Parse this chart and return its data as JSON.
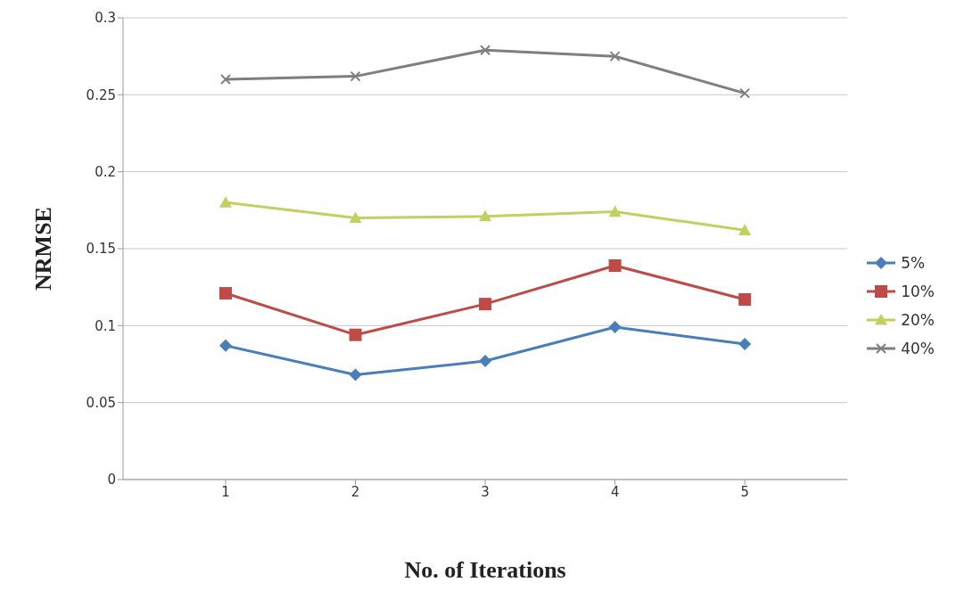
{
  "chart_data": {
    "type": "line",
    "xlabel": "No. of Iterations",
    "ylabel": "NRMSE",
    "categories": [
      "1",
      "2",
      "3",
      "4",
      "5"
    ],
    "series": [
      {
        "name": "5%",
        "color": "#4a7ebb",
        "marker": "diamond",
        "values": [
          0.087,
          0.068,
          0.077,
          0.099,
          0.088
        ]
      },
      {
        "name": "10%",
        "color": "#be4b48",
        "marker": "square",
        "values": [
          0.121,
          0.094,
          0.114,
          0.139,
          0.117
        ]
      },
      {
        "name": "20%",
        "color": "#c3cf5e",
        "marker": "triangle",
        "values": [
          0.18,
          0.17,
          0.171,
          0.174,
          0.162
        ]
      },
      {
        "name": "40%",
        "color": "#7f7f7f",
        "marker": "cross",
        "values": [
          0.26,
          0.262,
          0.279,
          0.275,
          0.251
        ]
      }
    ],
    "ylim": [
      0,
      0.3
    ],
    "yticks": [
      0,
      0.05,
      0.1,
      0.15,
      0.2,
      0.25,
      0.3
    ],
    "grid": "y",
    "legend": "right",
    "line_style": "solid"
  }
}
